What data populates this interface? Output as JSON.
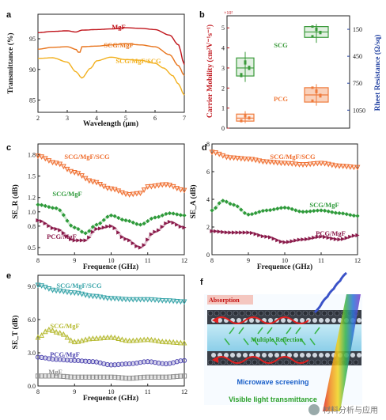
{
  "chart_data": [
    {
      "panel": "a",
      "type": "line",
      "xlabel": "Wavelength (μm)",
      "ylabel": "Transmittance (%)",
      "xlim": [
        2,
        7
      ],
      "ylim": [
        83,
        99
      ],
      "xticks": [
        "2",
        "3",
        "4",
        "5",
        "6",
        "7"
      ],
      "yticks": [
        "85",
        "90",
        "95"
      ],
      "series": [
        {
          "name": "MgF",
          "color": "#c0141b",
          "x": [
            2,
            2.5,
            3,
            3.3,
            3.5,
            4,
            4.5,
            5,
            5.5,
            6,
            6.5,
            6.8,
            7
          ],
          "y": [
            96.0,
            96.2,
            96.3,
            96.1,
            96.4,
            96.5,
            96.6,
            96.8,
            96.7,
            96.5,
            95.6,
            94.0,
            90.8
          ]
        },
        {
          "name": "SCG/MgF",
          "color": "#e8741c",
          "x": [
            2,
            2.5,
            3,
            3.35,
            3.4,
            3.5,
            4,
            4.5,
            5,
            5.5,
            6,
            6.5,
            6.8,
            7
          ],
          "y": [
            93.3,
            93.6,
            93.7,
            93.2,
            92.4,
            93.7,
            93.8,
            94.0,
            94.2,
            94.0,
            93.7,
            92.4,
            90.6,
            89.0
          ]
        },
        {
          "name": "SCG/MgF/SCG",
          "color": "#f2b01e",
          "x": [
            2,
            2.5,
            3,
            3.3,
            3.5,
            3.8,
            4,
            4.5,
            5,
            5.5,
            6,
            6.3,
            6.6,
            6.8,
            7
          ],
          "y": [
            91.8,
            91.9,
            91.2,
            89.6,
            88.6,
            90.2,
            91.4,
            92.0,
            91.6,
            91.5,
            91.0,
            90.2,
            89.0,
            87.6,
            85.8
          ]
        }
      ]
    },
    {
      "panel": "b",
      "type": "box",
      "ylabel": "Carrier Mobility (cm²V⁻¹s⁻¹)",
      "y2label": "Rheet Resistance (Ω/sq)",
      "yexp": "×10²",
      "yticks": [
        "0",
        "1",
        "2",
        "3",
        "4",
        "5"
      ],
      "y2ticks": [
        "150",
        "450",
        "750",
        "1050"
      ],
      "ylim": [
        0,
        5.6
      ],
      "y2lim": [
        1250,
        0
      ],
      "groups": [
        {
          "name": "SCG",
          "color": "#3a9a3a",
          "mobility_median": 3.0,
          "mobility_q1": 2.6,
          "mobility_q3": 3.5,
          "mobility_min": 2.3,
          "mobility_max": 3.8,
          "resistance_median": 180,
          "resistance_q1": 120,
          "resistance_q3": 240,
          "resistance_min": 90,
          "resistance_max": 300
        },
        {
          "name": "PCG",
          "color": "#ef7b3c",
          "mobility_median": 0.5,
          "mobility_q1": 0.35,
          "mobility_q3": 0.7,
          "mobility_min": 0.25,
          "mobility_max": 0.85,
          "resistance_median": 880,
          "resistance_q1": 800,
          "resistance_q3": 960,
          "resistance_min": 760,
          "resistance_max": 1000
        }
      ]
    },
    {
      "panel": "c",
      "type": "line",
      "xlabel": "Frequence (GHz)",
      "ylabel": "SE_R (dB)",
      "xlim": [
        8,
        12
      ],
      "ylim": [
        0.4,
        1.95
      ],
      "xticks": [
        "8",
        "9",
        "10",
        "11",
        "12"
      ],
      "yticks": [
        "0.5",
        "0.8",
        "1.0",
        "1.2",
        "1.5",
        "1.8"
      ],
      "series": [
        {
          "name": "SCG/MgF/SCG",
          "color": "#ef6c2c",
          "x": [
            8,
            8.5,
            9,
            9.5,
            10,
            10.5,
            10.8,
            11,
            11.5,
            12
          ],
          "y": [
            1.78,
            1.68,
            1.55,
            1.42,
            1.32,
            1.24,
            1.26,
            1.35,
            1.38,
            1.3
          ]
        },
        {
          "name": "SCG/MgF",
          "color": "#2e9a3a",
          "x": [
            8,
            8.5,
            9,
            9.3,
            9.6,
            10,
            10.4,
            10.8,
            11.2,
            11.6,
            12
          ],
          "y": [
            1.1,
            1.05,
            0.78,
            0.7,
            0.82,
            0.95,
            0.88,
            0.82,
            0.92,
            0.98,
            0.95
          ]
        },
        {
          "name": "PCG/MgF",
          "color": "#8a1a4a",
          "x": [
            8,
            8.5,
            9,
            9.3,
            9.6,
            10,
            10.4,
            10.8,
            11.2,
            11.6,
            12
          ],
          "y": [
            0.88,
            0.76,
            0.6,
            0.6,
            0.76,
            0.8,
            0.62,
            0.5,
            0.72,
            0.86,
            0.78
          ]
        }
      ]
    },
    {
      "panel": "d",
      "type": "line",
      "xlabel": "Frequence (GHz)",
      "ylabel": "SE_A (dB)",
      "xlim": [
        8,
        12
      ],
      "ylim": [
        0,
        8
      ],
      "xticks": [
        "8",
        "9",
        "10",
        "11",
        "12"
      ],
      "yticks": [
        "0",
        "2",
        "4",
        "6",
        "8"
      ],
      "series": [
        {
          "name": "SCG/MgF/SCG",
          "color": "#ef6c2c",
          "x": [
            8,
            8.5,
            9,
            9.5,
            10,
            10.5,
            11,
            11.5,
            12
          ],
          "y": [
            7.4,
            7.0,
            6.9,
            6.7,
            6.6,
            6.5,
            6.6,
            6.4,
            6.3
          ]
        },
        {
          "name": "SCG/MgF",
          "color": "#2e9a3a",
          "x": [
            8,
            8.3,
            8.6,
            9,
            9.5,
            10,
            10.5,
            11,
            11.5,
            12
          ],
          "y": [
            3.2,
            3.9,
            3.6,
            2.9,
            3.2,
            3.4,
            3.1,
            3.2,
            3.0,
            2.8
          ]
        },
        {
          "name": "PCG/MgF",
          "color": "#8a1a4a",
          "x": [
            8,
            8.5,
            9,
            9.5,
            10,
            10.5,
            11,
            11.5,
            12
          ],
          "y": [
            1.7,
            1.6,
            1.6,
            1.3,
            0.9,
            1.1,
            1.3,
            1.1,
            1.4
          ]
        }
      ]
    },
    {
      "panel": "e",
      "type": "line",
      "xlabel": "Frequence (GHz)",
      "ylabel": "SE_T (dB)",
      "xlim": [
        8,
        12
      ],
      "ylim": [
        0,
        10
      ],
      "xticks": [
        "8",
        "9",
        "10",
        "11",
        "12"
      ],
      "yticks": [
        "0.0",
        "3.0",
        "6.0",
        "9.0"
      ],
      "series": [
        {
          "name": "SCG/MgF/SCG",
          "color": "#35a3a8",
          "x": [
            8,
            8.5,
            9,
            9.5,
            10,
            10.5,
            11,
            11.5,
            12
          ],
          "y": [
            9.1,
            8.6,
            8.4,
            8.1,
            7.9,
            7.8,
            7.8,
            7.7,
            7.6
          ]
        },
        {
          "name": "SCG/MgF",
          "color": "#b5b92e",
          "x": [
            8,
            8.3,
            8.6,
            9,
            9.5,
            10,
            10.5,
            11,
            11.5,
            12
          ],
          "y": [
            4.4,
            5.1,
            4.8,
            4.0,
            4.3,
            4.4,
            4.1,
            4.2,
            4.0,
            3.9
          ]
        },
        {
          "name": "PCG/MgF",
          "color": "#4e46b0",
          "x": [
            8,
            8.5,
            9,
            9.5,
            10,
            10.5,
            11,
            11.5,
            12
          ],
          "y": [
            2.6,
            2.4,
            2.3,
            2.2,
            1.9,
            2.0,
            2.2,
            2.0,
            2.3
          ]
        },
        {
          "name": "MgF",
          "color": "#8d8d8d",
          "x": [
            8,
            8.5,
            9,
            9.5,
            10,
            10.5,
            11,
            11.5,
            12
          ],
          "y": [
            0.9,
            0.9,
            0.8,
            0.8,
            0.8,
            0.7,
            0.8,
            0.8,
            0.9
          ]
        }
      ]
    }
  ],
  "schematic": {
    "panel": "f",
    "labels": {
      "absorption": "Absorption",
      "multiple_reflection": "Multiple Reflection",
      "microwave_screening": "Microwave screening",
      "visible_light": "Visible light transmittance"
    },
    "colors": {
      "red_arrow": "#e02020",
      "green_arrow": "#39b54a",
      "blue_label": "#1a5fc8",
      "green_label": "#2aa02a",
      "absorption_bg": "#f4c7c0"
    }
  },
  "watermark": {
    "text": "材料分析与应用"
  }
}
